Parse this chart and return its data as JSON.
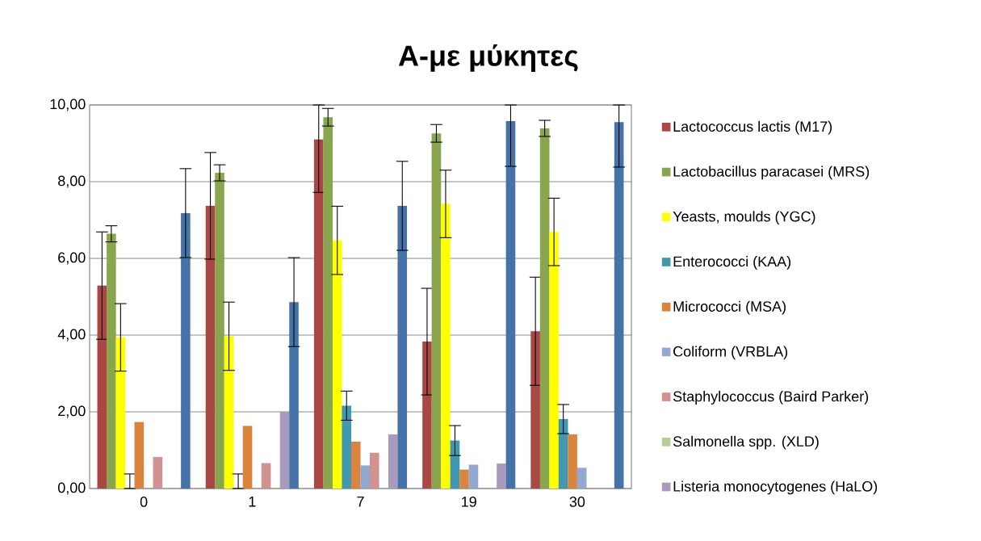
{
  "chart_data": {
    "type": "bar",
    "title": "Α-με μύκητες",
    "categories": [
      "0",
      "1",
      "7",
      "19",
      "30"
    ],
    "series": [
      {
        "name": "Lactococcus lactis (M17)",
        "color": "#aa4643",
        "values": [
          5.29,
          7.37,
          9.1,
          3.83,
          4.1
        ],
        "errors": [
          1.4,
          1.39,
          [
            7.72,
            10
          ],
          1.39,
          1.41
        ]
      },
      {
        "name": "Lactobacillus paracasei (MRS)",
        "color": "#89a54e",
        "values": [
          6.64,
          8.23,
          9.68,
          9.26,
          9.39
        ],
        "errors": [
          0.21,
          0.21,
          0.23,
          0.23,
          0.21
        ]
      },
      {
        "name": "Yeasts, moulds (YGC)",
        "color": "#ffff00",
        "values": [
          3.94,
          3.97,
          6.47,
          7.42,
          6.69
        ],
        "errors": [
          0.88,
          0.89,
          0.89,
          0.88,
          0.88
        ]
      },
      {
        "name": "Enterococci (KAA)",
        "color": "#4198af",
        "values": [
          0,
          0,
          2.16,
          1.25,
          1.81
        ],
        "errors": [
          [
            0,
            0.38
          ],
          [
            0,
            0.38
          ],
          0.38,
          0.39,
          0.38
        ]
      },
      {
        "name": "Micrococci (MSA)",
        "color": "#db843d",
        "values": [
          1.73,
          1.63,
          1.22,
          0.49,
          1.41
        ]
      },
      {
        "name": "Coliform (VRBLA)",
        "color": "#93a9cf",
        "values": [
          0,
          0,
          0.6,
          0.62,
          0.54
        ]
      },
      {
        "name": "Staphylococcus (Baird Parker)",
        "color": "#d19392",
        "values": [
          0.82,
          0.66,
          0.93,
          0,
          0
        ]
      },
      {
        "name": "Salmonella spp. (XLD)",
        "color": "#b9cd96",
        "values": [
          0,
          0,
          0,
          0,
          0
        ]
      },
      {
        "name": "Listeria monocytogenes (HaLO)",
        "color": "#a99bbd",
        "values": [
          0,
          2.0,
          1.41,
          0.65,
          0
        ]
      },
      {
        "color": "#4572a7",
        "values": [
          7.18,
          4.86,
          7.37,
          9.58,
          9.55
        ],
        "errors": [
          1.16,
          1.16,
          1.16,
          [
            8.4,
            10
          ],
          [
            8.38,
            10
          ]
        ]
      }
    ],
    "ylim": [
      0,
      10
    ],
    "yticks": [
      {
        "value": 0,
        "label": "0,00"
      },
      {
        "value": 2,
        "label": "2,00"
      },
      {
        "value": 4,
        "label": "4,00"
      },
      {
        "value": 6,
        "label": "6,00"
      },
      {
        "value": 8,
        "label": "8,00"
      },
      {
        "value": 10,
        "label": "10,00"
      }
    ],
    "grid": "y",
    "legend": "right"
  }
}
